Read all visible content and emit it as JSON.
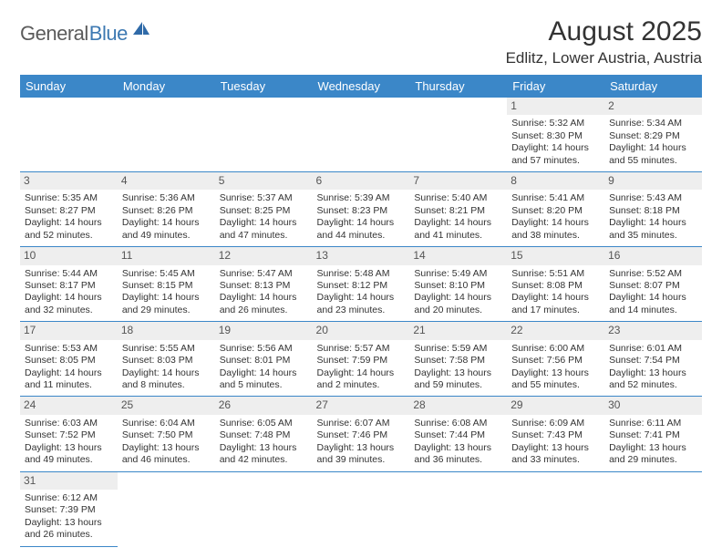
{
  "logo": {
    "part1": "General",
    "part2": "Blue"
  },
  "title": "August 2025",
  "location": "Edlitz, Lower Austria, Austria",
  "colors": {
    "header_bg": "#3b87c8",
    "header_fg": "#ffffff",
    "daynum_bg": "#eeeeee",
    "rule": "#3b87c8"
  },
  "weekdays": [
    "Sunday",
    "Monday",
    "Tuesday",
    "Wednesday",
    "Thursday",
    "Friday",
    "Saturday"
  ],
  "weeks": [
    [
      null,
      null,
      null,
      null,
      null,
      {
        "n": "1",
        "sr": "Sunrise: 5:32 AM",
        "ss": "Sunset: 8:30 PM",
        "d1": "Daylight: 14 hours",
        "d2": "and 57 minutes."
      },
      {
        "n": "2",
        "sr": "Sunrise: 5:34 AM",
        "ss": "Sunset: 8:29 PM",
        "d1": "Daylight: 14 hours",
        "d2": "and 55 minutes."
      }
    ],
    [
      {
        "n": "3",
        "sr": "Sunrise: 5:35 AM",
        "ss": "Sunset: 8:27 PM",
        "d1": "Daylight: 14 hours",
        "d2": "and 52 minutes."
      },
      {
        "n": "4",
        "sr": "Sunrise: 5:36 AM",
        "ss": "Sunset: 8:26 PM",
        "d1": "Daylight: 14 hours",
        "d2": "and 49 minutes."
      },
      {
        "n": "5",
        "sr": "Sunrise: 5:37 AM",
        "ss": "Sunset: 8:25 PM",
        "d1": "Daylight: 14 hours",
        "d2": "and 47 minutes."
      },
      {
        "n": "6",
        "sr": "Sunrise: 5:39 AM",
        "ss": "Sunset: 8:23 PM",
        "d1": "Daylight: 14 hours",
        "d2": "and 44 minutes."
      },
      {
        "n": "7",
        "sr": "Sunrise: 5:40 AM",
        "ss": "Sunset: 8:21 PM",
        "d1": "Daylight: 14 hours",
        "d2": "and 41 minutes."
      },
      {
        "n": "8",
        "sr": "Sunrise: 5:41 AM",
        "ss": "Sunset: 8:20 PM",
        "d1": "Daylight: 14 hours",
        "d2": "and 38 minutes."
      },
      {
        "n": "9",
        "sr": "Sunrise: 5:43 AM",
        "ss": "Sunset: 8:18 PM",
        "d1": "Daylight: 14 hours",
        "d2": "and 35 minutes."
      }
    ],
    [
      {
        "n": "10",
        "sr": "Sunrise: 5:44 AM",
        "ss": "Sunset: 8:17 PM",
        "d1": "Daylight: 14 hours",
        "d2": "and 32 minutes."
      },
      {
        "n": "11",
        "sr": "Sunrise: 5:45 AM",
        "ss": "Sunset: 8:15 PM",
        "d1": "Daylight: 14 hours",
        "d2": "and 29 minutes."
      },
      {
        "n": "12",
        "sr": "Sunrise: 5:47 AM",
        "ss": "Sunset: 8:13 PM",
        "d1": "Daylight: 14 hours",
        "d2": "and 26 minutes."
      },
      {
        "n": "13",
        "sr": "Sunrise: 5:48 AM",
        "ss": "Sunset: 8:12 PM",
        "d1": "Daylight: 14 hours",
        "d2": "and 23 minutes."
      },
      {
        "n": "14",
        "sr": "Sunrise: 5:49 AM",
        "ss": "Sunset: 8:10 PM",
        "d1": "Daylight: 14 hours",
        "d2": "and 20 minutes."
      },
      {
        "n": "15",
        "sr": "Sunrise: 5:51 AM",
        "ss": "Sunset: 8:08 PM",
        "d1": "Daylight: 14 hours",
        "d2": "and 17 minutes."
      },
      {
        "n": "16",
        "sr": "Sunrise: 5:52 AM",
        "ss": "Sunset: 8:07 PM",
        "d1": "Daylight: 14 hours",
        "d2": "and 14 minutes."
      }
    ],
    [
      {
        "n": "17",
        "sr": "Sunrise: 5:53 AM",
        "ss": "Sunset: 8:05 PM",
        "d1": "Daylight: 14 hours",
        "d2": "and 11 minutes."
      },
      {
        "n": "18",
        "sr": "Sunrise: 5:55 AM",
        "ss": "Sunset: 8:03 PM",
        "d1": "Daylight: 14 hours",
        "d2": "and 8 minutes."
      },
      {
        "n": "19",
        "sr": "Sunrise: 5:56 AM",
        "ss": "Sunset: 8:01 PM",
        "d1": "Daylight: 14 hours",
        "d2": "and 5 minutes."
      },
      {
        "n": "20",
        "sr": "Sunrise: 5:57 AM",
        "ss": "Sunset: 7:59 PM",
        "d1": "Daylight: 14 hours",
        "d2": "and 2 minutes."
      },
      {
        "n": "21",
        "sr": "Sunrise: 5:59 AM",
        "ss": "Sunset: 7:58 PM",
        "d1": "Daylight: 13 hours",
        "d2": "and 59 minutes."
      },
      {
        "n": "22",
        "sr": "Sunrise: 6:00 AM",
        "ss": "Sunset: 7:56 PM",
        "d1": "Daylight: 13 hours",
        "d2": "and 55 minutes."
      },
      {
        "n": "23",
        "sr": "Sunrise: 6:01 AM",
        "ss": "Sunset: 7:54 PM",
        "d1": "Daylight: 13 hours",
        "d2": "and 52 minutes."
      }
    ],
    [
      {
        "n": "24",
        "sr": "Sunrise: 6:03 AM",
        "ss": "Sunset: 7:52 PM",
        "d1": "Daylight: 13 hours",
        "d2": "and 49 minutes."
      },
      {
        "n": "25",
        "sr": "Sunrise: 6:04 AM",
        "ss": "Sunset: 7:50 PM",
        "d1": "Daylight: 13 hours",
        "d2": "and 46 minutes."
      },
      {
        "n": "26",
        "sr": "Sunrise: 6:05 AM",
        "ss": "Sunset: 7:48 PM",
        "d1": "Daylight: 13 hours",
        "d2": "and 42 minutes."
      },
      {
        "n": "27",
        "sr": "Sunrise: 6:07 AM",
        "ss": "Sunset: 7:46 PM",
        "d1": "Daylight: 13 hours",
        "d2": "and 39 minutes."
      },
      {
        "n": "28",
        "sr": "Sunrise: 6:08 AM",
        "ss": "Sunset: 7:44 PM",
        "d1": "Daylight: 13 hours",
        "d2": "and 36 minutes."
      },
      {
        "n": "29",
        "sr": "Sunrise: 6:09 AM",
        "ss": "Sunset: 7:43 PM",
        "d1": "Daylight: 13 hours",
        "d2": "and 33 minutes."
      },
      {
        "n": "30",
        "sr": "Sunrise: 6:11 AM",
        "ss": "Sunset: 7:41 PM",
        "d1": "Daylight: 13 hours",
        "d2": "and 29 minutes."
      }
    ],
    [
      {
        "n": "31",
        "sr": "Sunrise: 6:12 AM",
        "ss": "Sunset: 7:39 PM",
        "d1": "Daylight: 13 hours",
        "d2": "and 26 minutes."
      },
      null,
      null,
      null,
      null,
      null,
      null
    ]
  ]
}
